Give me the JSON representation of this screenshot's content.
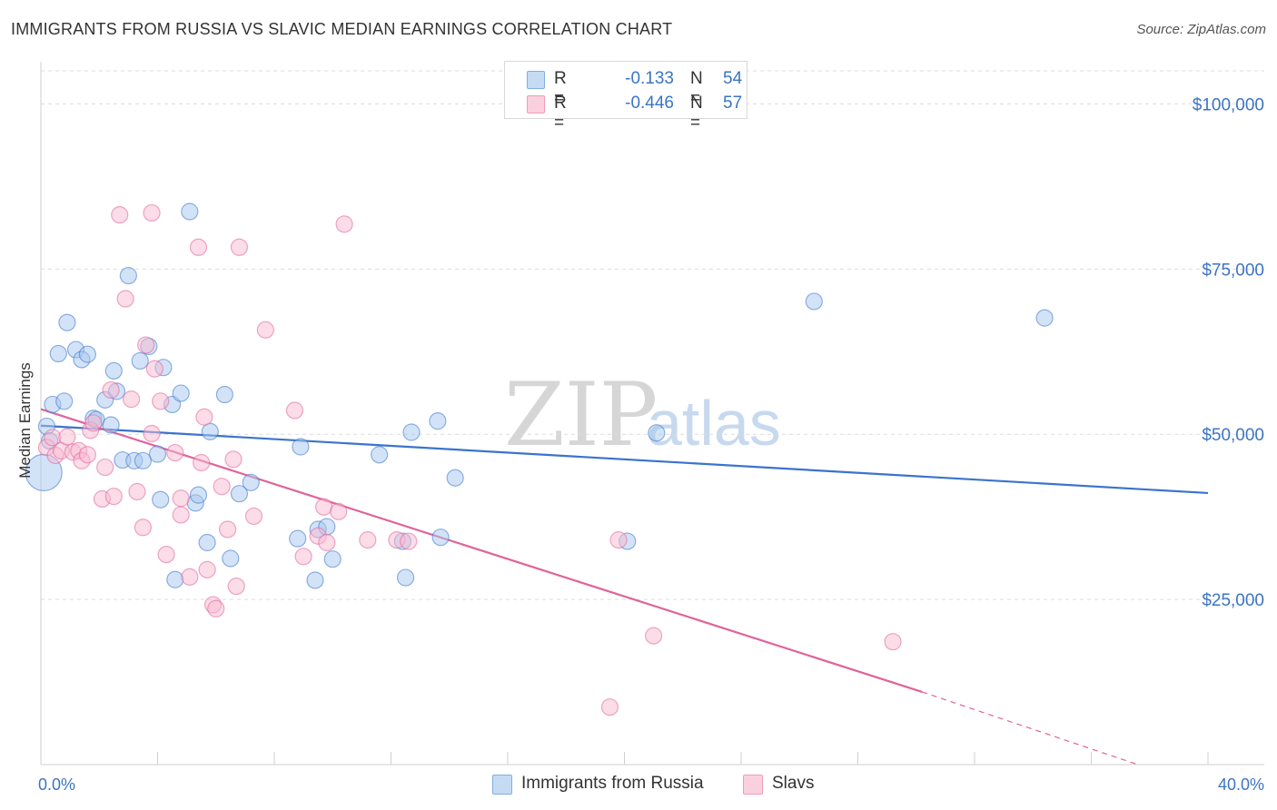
{
  "title": "IMMIGRANTS FROM RUSSIA VS SLAVIC MEDIAN EARNINGS CORRELATION CHART",
  "source": "Source: ZipAtlas.com",
  "watermark": {
    "zip": "ZIP",
    "atlas": "atlas"
  },
  "legend": {
    "rows": [
      {
        "r_label": "R =",
        "r_value": "-0.133",
        "n_label": "N =",
        "n_value": "54",
        "color": "#a8c8ef"
      },
      {
        "r_label": "R =",
        "r_value": "-0.446",
        "n_label": "N =",
        "n_value": "57",
        "color": "#f8b9cf"
      }
    ]
  },
  "bottom_legend": [
    {
      "label": "Immigrants from Russia",
      "color": "#a8c8ef"
    },
    {
      "label": "Slavs",
      "color": "#f8b9cf"
    }
  ],
  "chart_data": {
    "type": "scatter",
    "xlabel": "",
    "ylabel": "Median Earnings",
    "xlim": [
      0,
      40
    ],
    "ylim": [
      0,
      105000
    ],
    "x_tick_labels": [
      "0.0%",
      "40.0%"
    ],
    "y_ticks": [
      {
        "value": 25000,
        "label": "$25,000"
      },
      {
        "value": 50000,
        "label": "$50,000"
      },
      {
        "value": 75000,
        "label": "$75,000"
      },
      {
        "value": 100000,
        "label": "$100,000"
      }
    ],
    "grid": true,
    "series": [
      {
        "name": "Immigrants from Russia",
        "color": "#3a74cc",
        "fill": "#a8c8ef",
        "trend": {
          "x": [
            0,
            40
          ],
          "y": [
            51300,
            41100
          ],
          "dashed_to": null
        },
        "points": [
          [
            0.1,
            44200,
            "large"
          ],
          [
            0.2,
            51200
          ],
          [
            0.4,
            54500
          ],
          [
            0.6,
            62200
          ],
          [
            0.8,
            55000
          ],
          [
            0.9,
            66900
          ],
          [
            1.2,
            62800
          ],
          [
            1.4,
            61300
          ],
          [
            1.6,
            62100
          ],
          [
            1.8,
            52400
          ],
          [
            1.9,
            52200
          ],
          [
            2.2,
            55200
          ],
          [
            2.4,
            51400
          ],
          [
            2.5,
            59600
          ],
          [
            2.6,
            56500
          ],
          [
            2.8,
            46100
          ],
          [
            3.0,
            74000
          ],
          [
            3.2,
            46000
          ],
          [
            3.4,
            61100
          ],
          [
            3.5,
            46000
          ],
          [
            3.7,
            63300
          ],
          [
            4.0,
            47000
          ],
          [
            4.1,
            40100
          ],
          [
            4.2,
            60100
          ],
          [
            4.5,
            54500
          ],
          [
            4.6,
            28000
          ],
          [
            4.8,
            56200
          ],
          [
            5.1,
            83700
          ],
          [
            5.3,
            39600
          ],
          [
            5.4,
            40800
          ],
          [
            5.7,
            33600
          ],
          [
            5.8,
            50400
          ],
          [
            6.3,
            56000
          ],
          [
            6.5,
            31200
          ],
          [
            6.8,
            41000
          ],
          [
            7.2,
            42700
          ],
          [
            8.8,
            34200
          ],
          [
            8.9,
            48100
          ],
          [
            9.4,
            27900
          ],
          [
            9.5,
            35600
          ],
          [
            9.8,
            36000
          ],
          [
            10.0,
            31100
          ],
          [
            11.6,
            46900
          ],
          [
            12.4,
            33800
          ],
          [
            12.5,
            28300
          ],
          [
            12.7,
            50300
          ],
          [
            13.6,
            52000
          ],
          [
            13.7,
            34400
          ],
          [
            14.2,
            43400
          ],
          [
            20.1,
            33800
          ],
          [
            21.1,
            50200
          ],
          [
            26.5,
            70100
          ],
          [
            34.4,
            67600
          ],
          [
            0.3,
            49000
          ]
        ]
      },
      {
        "name": "Slavs",
        "color": "#e0639a",
        "fill": "#f8b9cf",
        "trend": {
          "x": [
            0,
            30.2
          ],
          "y": [
            53800,
            11000
          ],
          "dashed_to": [
            37.6,
            0
          ]
        },
        "points": [
          [
            0.2,
            48000
          ],
          [
            0.4,
            49500
          ],
          [
            0.5,
            46800
          ],
          [
            0.7,
            47500
          ],
          [
            0.9,
            49600
          ],
          [
            1.1,
            47300
          ],
          [
            1.3,
            47500
          ],
          [
            1.4,
            46000
          ],
          [
            1.6,
            46900
          ],
          [
            1.7,
            50600
          ],
          [
            1.8,
            51700
          ],
          [
            2.1,
            40200
          ],
          [
            2.2,
            45000
          ],
          [
            2.4,
            56700
          ],
          [
            2.5,
            40600
          ],
          [
            2.7,
            83200
          ],
          [
            2.9,
            70500
          ],
          [
            3.1,
            55300
          ],
          [
            3.3,
            41300
          ],
          [
            3.5,
            35900
          ],
          [
            3.6,
            63500
          ],
          [
            3.8,
            83500
          ],
          [
            3.8,
            50100
          ],
          [
            4.1,
            55000
          ],
          [
            4.3,
            31800
          ],
          [
            4.6,
            47200
          ],
          [
            4.8,
            37800
          ],
          [
            4.8,
            40300
          ],
          [
            5.1,
            28400
          ],
          [
            5.4,
            78300
          ],
          [
            5.5,
            45700
          ],
          [
            5.6,
            52600
          ],
          [
            5.7,
            29500
          ],
          [
            5.9,
            24200
          ],
          [
            6.0,
            23600
          ],
          [
            6.2,
            42100
          ],
          [
            6.4,
            35600
          ],
          [
            6.6,
            46200
          ],
          [
            6.8,
            78300
          ],
          [
            6.7,
            27000
          ],
          [
            7.3,
            37600
          ],
          [
            7.7,
            65800
          ],
          [
            8.7,
            53600
          ],
          [
            9.0,
            31500
          ],
          [
            9.5,
            34600
          ],
          [
            9.8,
            33600
          ],
          [
            9.7,
            39000
          ],
          [
            10.2,
            38300
          ],
          [
            10.4,
            81800
          ],
          [
            11.2,
            34000
          ],
          [
            12.2,
            34000
          ],
          [
            12.6,
            33800
          ],
          [
            19.5,
            8700
          ],
          [
            19.8,
            34000
          ],
          [
            21.0,
            19500
          ],
          [
            29.2,
            18600
          ],
          [
            3.9,
            59900
          ]
        ]
      }
    ]
  }
}
